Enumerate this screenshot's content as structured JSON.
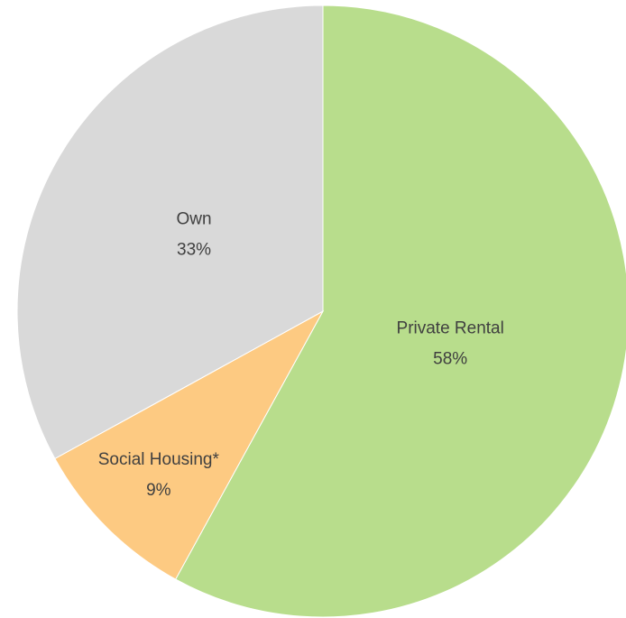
{
  "chart_data": {
    "type": "pie",
    "categories": [
      "Private Rental",
      "Social Housing*",
      "Own"
    ],
    "values": [
      58,
      9,
      33
    ],
    "value_labels": [
      "58%",
      "9%",
      "33%"
    ],
    "colors": [
      "#b8dd8c",
      "#fdca82",
      "#d9d9d9"
    ]
  }
}
